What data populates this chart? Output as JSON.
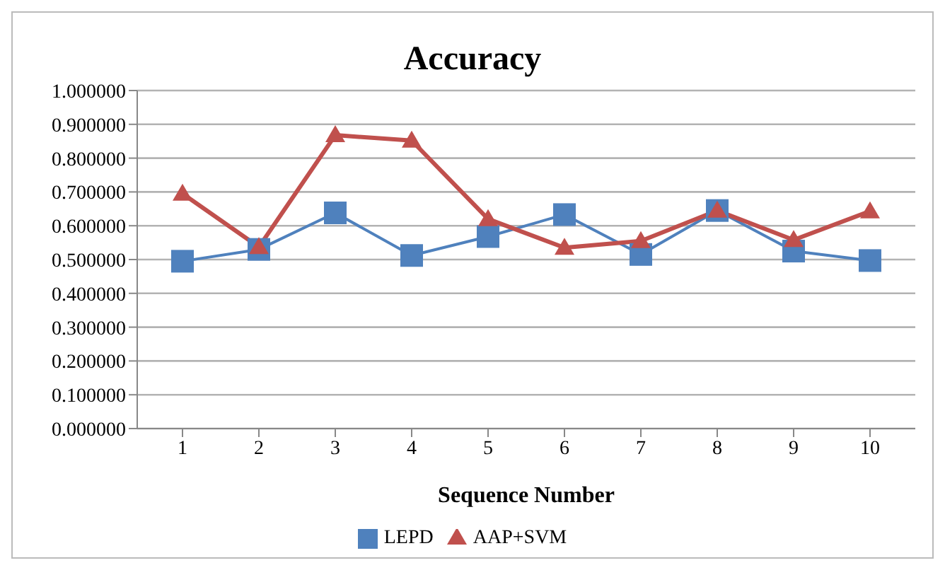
{
  "chart_data": {
    "type": "line",
    "title": "Accuracy",
    "xlabel": "Sequence Number",
    "categories": [
      "1",
      "2",
      "3",
      "4",
      "5",
      "6",
      "7",
      "8",
      "9",
      "10"
    ],
    "series": [
      {
        "name": "LEPD",
        "color": "#4f81bd",
        "marker": "square",
        "values": [
          0.495,
          0.53,
          0.638,
          0.512,
          0.568,
          0.633,
          0.515,
          0.645,
          0.525,
          0.497
        ]
      },
      {
        "name": "AAP+SVM",
        "color": "#c0504d",
        "marker": "triangle",
        "values": [
          0.695,
          0.537,
          0.868,
          0.852,
          0.62,
          0.535,
          0.555,
          0.645,
          0.558,
          0.643
        ]
      }
    ],
    "ylim": [
      0,
      1
    ],
    "yticks": [
      {
        "value": 0,
        "label": "0.000000"
      },
      {
        "value": 0.1,
        "label": "0.100000"
      },
      {
        "value": 0.2,
        "label": "0.200000"
      },
      {
        "value": 0.3,
        "label": "0.300000"
      },
      {
        "value": 0.4,
        "label": "0.400000"
      },
      {
        "value": 0.5,
        "label": "0.500000"
      },
      {
        "value": 0.6,
        "label": "0.600000"
      },
      {
        "value": 0.7,
        "label": "0.700000"
      },
      {
        "value": 0.8,
        "label": "0.800000"
      },
      {
        "value": 0.9,
        "label": "0.900000"
      },
      {
        "value": 1,
        "label": "1.000000"
      }
    ],
    "grid": "y",
    "legend": "bottom"
  }
}
